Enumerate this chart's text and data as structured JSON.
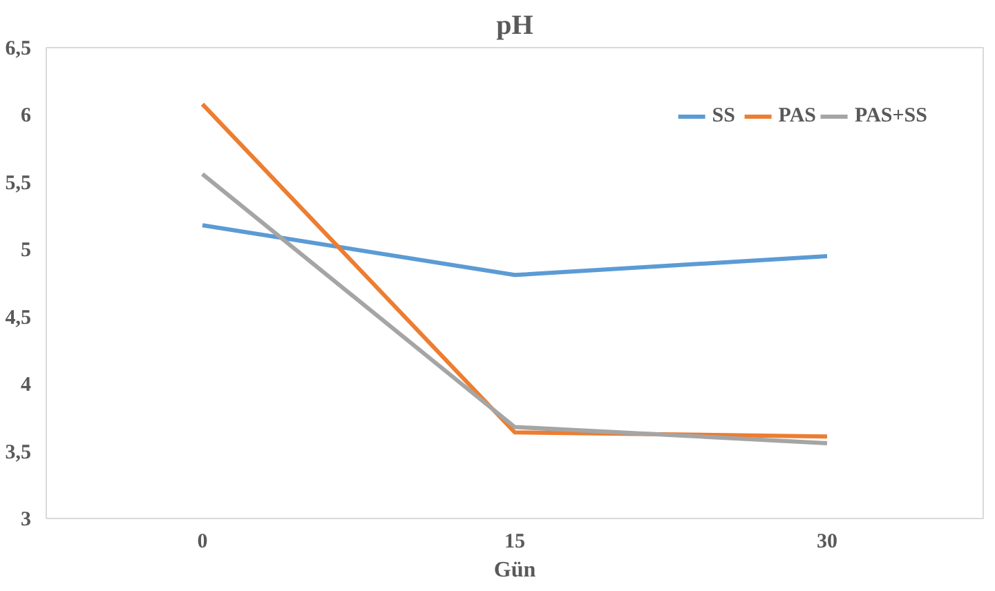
{
  "chart_data": {
    "type": "line",
    "title": "pH",
    "xlabel": "Gün",
    "categories": [
      "0",
      "15",
      "30"
    ],
    "series": [
      {
        "name": "SS",
        "color": "#5b9bd5",
        "values": [
          5.18,
          4.81,
          4.95
        ]
      },
      {
        "name": "PAS",
        "color": "#ed7d31",
        "values": [
          6.08,
          3.64,
          3.61
        ]
      },
      {
        "name": "PAS+SS",
        "color": "#a5a5a5",
        "values": [
          5.56,
          3.68,
          3.56
        ]
      }
    ],
    "ylim": [
      3,
      6.5
    ],
    "yticks": [
      3,
      {
        "value": 3.5,
        "label": "3,5"
      },
      4,
      {
        "value": 4.5,
        "label": "4,5"
      },
      5,
      {
        "value": 5.5,
        "label": "5,5"
      },
      6,
      {
        "value": 6.5,
        "label": "6,5"
      }
    ],
    "grid": false,
    "legend": "top right",
    "marker": "none",
    "line_style": "solid"
  }
}
